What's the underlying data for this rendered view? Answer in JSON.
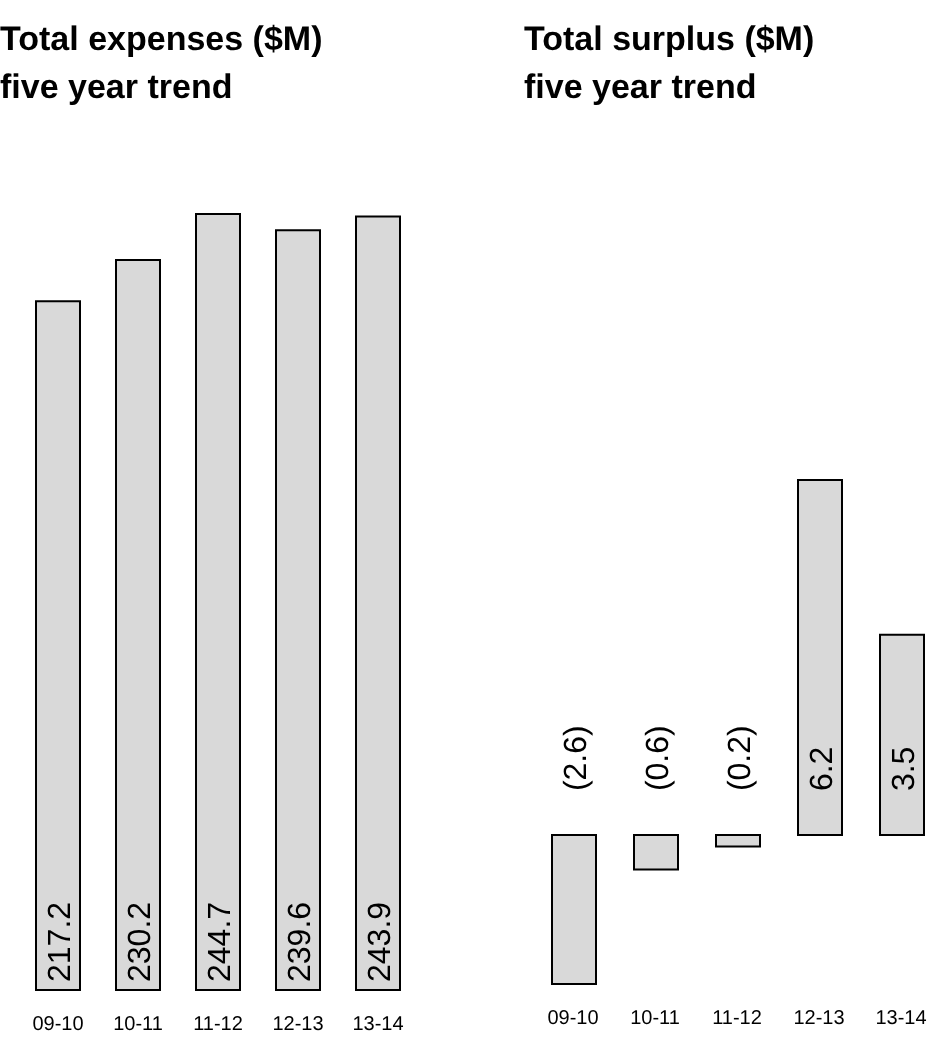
{
  "chart_data": [
    {
      "type": "bar",
      "title": "Total expenses ($M)",
      "subtitle": "five year trend",
      "categories": [
        "09-10",
        "10-11",
        "11-12",
        "12-13",
        "13-14"
      ],
      "values": [
        217.2,
        230.2,
        244.7,
        239.6,
        243.9
      ],
      "color": "#d9d9d9",
      "data_labels": true
    },
    {
      "type": "bar",
      "title": "Total surplus ($M)",
      "subtitle": "five year trend",
      "categories": [
        "09-10",
        "10-11",
        "11-12",
        "12-13",
        "13-14"
      ],
      "values": [
        -2.6,
        -0.6,
        -0.2,
        6.2,
        3.5
      ],
      "value_labels": [
        "(2.6)",
        "(0.6)",
        "(0.2)",
        "6.2",
        "3.5"
      ],
      "color": "#d9d9d9"
    }
  ]
}
